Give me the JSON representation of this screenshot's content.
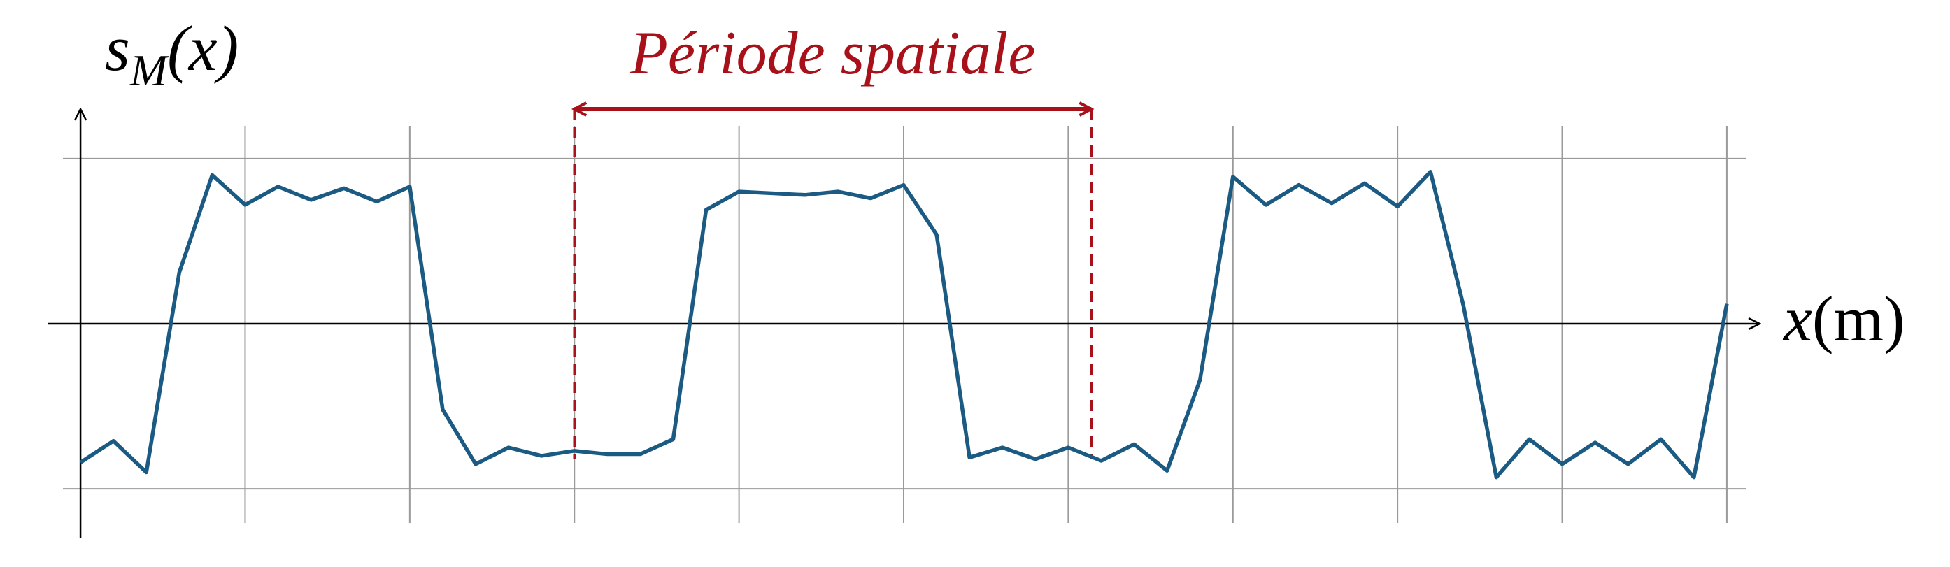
{
  "chart_data": {
    "type": "line",
    "ylabel": [
      "s",
      "M",
      "(x)"
    ],
    "xlabel": [
      "x",
      "(m)"
    ],
    "annotation": {
      "text": "Période spatiale",
      "x": [
        3,
        6.14
      ],
      "color": "#a8101a"
    },
    "x": [
      0,
      0.2,
      0.4,
      0.6,
      0.8,
      1,
      1.2,
      1.4,
      1.6,
      1.8,
      2,
      2.2,
      2.4,
      2.6,
      2.8,
      3,
      3.2,
      3.4,
      3.6,
      3.8,
      4,
      4.2,
      4.4,
      4.6,
      4.8,
      5,
      5.2,
      5.4,
      5.6,
      5.8,
      6,
      6.2,
      6.4,
      6.6,
      6.8,
      7,
      7.2,
      7.4,
      7.6,
      7.8,
      8,
      8.2,
      8.4,
      8.6,
      8.8,
      9,
      9.2,
      9.4,
      9.6,
      9.8,
      10
    ],
    "series": [
      {
        "color": "#1b5a82",
        "values": [
          -0.84,
          -0.71,
          -0.9,
          0.31,
          0.9,
          0.72,
          0.83,
          0.75,
          0.82,
          0.74,
          0.83,
          -0.52,
          -0.85,
          -0.75,
          -0.8,
          -0.77,
          -0.79,
          -0.79,
          -0.7,
          0.69,
          0.8,
          0.79,
          0.78,
          0.8,
          0.76,
          0.84,
          0.54,
          -0.81,
          -0.75,
          -0.82,
          -0.75,
          -0.83,
          -0.73,
          -0.89,
          -0.34,
          0.89,
          0.72,
          0.84,
          0.73,
          0.85,
          0.71,
          0.92,
          0.11,
          -0.93,
          -0.7,
          -0.85,
          -0.72,
          -0.85,
          -0.7,
          -0.93,
          0.12
        ]
      }
    ],
    "xlim": [
      -0.2,
      10.2
    ],
    "ylim": [
      -1.3,
      1.3
    ],
    "xticks": [
      0,
      1,
      2,
      3,
      4,
      5,
      6,
      7,
      8,
      9,
      10
    ],
    "yticks": [
      -1,
      1
    ],
    "grid": true
  }
}
